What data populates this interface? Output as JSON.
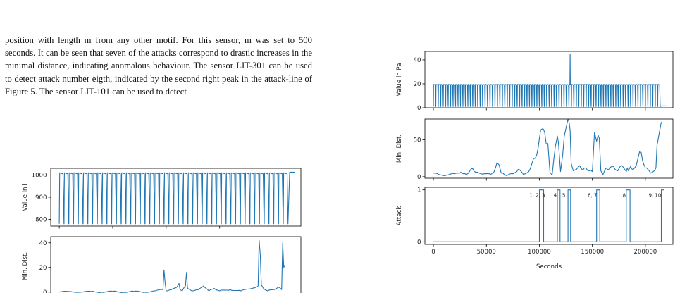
{
  "paragraph": {
    "lines": [
      "position with length m from any other motif. For this sensor, m",
      "was set to 500 seconds. It can be seen that seven of the attacks",
      "correspond to drastic increases in the minimal distance, indicating",
      "anomalous behaviour. The sensor LIT-301 can be used to detect",
      "attack number eigth, indicated by the second right peak in the",
      "attack-line of Figure 5. The sensor LIT-101 can be used to detect"
    ]
  },
  "colors": {
    "series": "#1f77b4",
    "axis": "#000000",
    "text": "#111111"
  },
  "chart_data": [
    {
      "id": "right-figure",
      "type": "line",
      "subplots": [
        {
          "id": "value",
          "ylabel": "Value in Pa",
          "ylim": [
            0,
            47
          ],
          "yticks": [
            0,
            20,
            40
          ],
          "pattern": "oscillation",
          "low": 1,
          "high": 19.5,
          "cycles": 92,
          "spike": {
            "x": 129000,
            "y": 45
          },
          "tail": 1.5
        },
        {
          "id": "mindist",
          "ylabel": "Min. Dist.",
          "ylim": [
            -2,
            78
          ],
          "yticks": [
            0,
            50
          ],
          "x": [
            0,
            5000,
            12000,
            20000,
            26000,
            28000,
            31000,
            34000,
            37000,
            40000,
            43000,
            48000,
            54000,
            57000,
            60000,
            62000,
            64000,
            67000,
            70000,
            75000,
            80000,
            83000,
            85000,
            88000,
            90000,
            93000,
            96000,
            100000,
            105000,
            108000,
            110000,
            112000,
            115000,
            117000,
            118000,
            120000,
            122000,
            125000,
            127000,
            128000,
            129000,
            130000,
            132000,
            135000,
            138000,
            141000,
            144000,
            147000,
            150000,
            152000,
            154000,
            155500,
            156500,
            158000,
            160000,
            163000,
            166000,
            170000,
            174000,
            178000,
            180000,
            182000,
            183000,
            184000,
            186000,
            188000,
            190000,
            193000,
            196000,
            200000,
            205000,
            210000,
            211000,
            213000,
            215000
          ],
          "y": [
            5,
            3,
            2,
            4,
            6,
            4,
            3,
            7,
            11,
            6,
            5,
            4,
            3,
            6,
            19,
            16,
            5,
            3,
            2,
            4,
            10,
            7,
            3,
            5,
            7,
            18,
            25,
            52,
            60,
            45,
            6,
            2,
            40,
            55,
            46,
            7,
            30,
            65,
            78,
            74,
            63,
            18,
            8,
            10,
            15,
            9,
            12,
            8,
            7,
            60,
            48,
            56,
            52,
            8,
            3,
            12,
            10,
            14,
            8,
            15,
            11,
            7,
            12,
            8,
            14,
            9,
            12,
            25,
            33,
            12,
            5,
            12,
            42,
            58,
            74
          ]
        },
        {
          "id": "attack",
          "ylabel": "Attack",
          "ylim": [
            -0.05,
            1.05
          ],
          "yticks": [
            0,
            1
          ],
          "pulses": [
            [
              100000,
              104000
            ],
            [
              117000,
              119500
            ],
            [
              127000,
              129500
            ],
            [
              154000,
              157000
            ],
            [
              182000,
              185500
            ],
            [
              215000,
              218000
            ]
          ],
          "annotations": [
            {
              "text": "1, 2, 3",
              "x": 98000
            },
            {
              "text": "4",
              "x": 115000
            },
            {
              "text": "5",
              "x": 123000
            },
            {
              "text": "6, 7",
              "x": 150000
            },
            {
              "text": "8",
              "x": 180000
            },
            {
              "text": "9, 10",
              "x": 209000
            }
          ]
        }
      ],
      "xlim": [
        -8000,
        226000
      ],
      "xticks": [
        0,
        50000,
        100000,
        150000,
        200000
      ],
      "xlabel": "Seconds"
    },
    {
      "id": "left-figure",
      "type": "line",
      "subplots": [
        {
          "id": "value",
          "ylabel": "Value in l",
          "ylim": [
            770,
            1030
          ],
          "yticks": [
            800,
            900,
            1000
          ],
          "pattern": "oscillation",
          "low": 780,
          "high": 1010,
          "cycles": 48,
          "tail": 1013
        },
        {
          "id": "mindist",
          "ylabel": "Min. Dist.",
          "ylim": [
            -3,
            45
          ],
          "yticks": [
            0,
            20,
            40
          ],
          "x": [
            0,
            10000,
            20000,
            30000,
            40000,
            50000,
            60000,
            70000,
            80000,
            90000,
            97000,
            98000,
            99000,
            100000,
            105000,
            110000,
            112000,
            113000,
            115000,
            118000,
            119000,
            120000,
            125000,
            130000,
            135000,
            140000,
            145000,
            150000,
            160000,
            170000,
            180000,
            186000,
            187000,
            188000,
            189000,
            191000,
            195000,
            200000,
            205000,
            208000,
            209000,
            210000,
            211000
          ],
          "y": [
            0,
            0.5,
            0,
            0.5,
            0,
            0.5,
            0,
            0.5,
            0,
            1,
            2,
            18,
            8,
            1,
            2,
            4,
            7,
            2,
            1,
            5,
            16,
            3,
            1,
            2,
            5,
            1,
            3,
            1,
            2,
            1,
            3,
            5,
            42,
            30,
            6,
            3,
            1,
            2,
            4,
            2,
            40,
            20,
            22
          ]
        }
      ],
      "xlim": [
        -8000,
        226000
      ]
    }
  ]
}
